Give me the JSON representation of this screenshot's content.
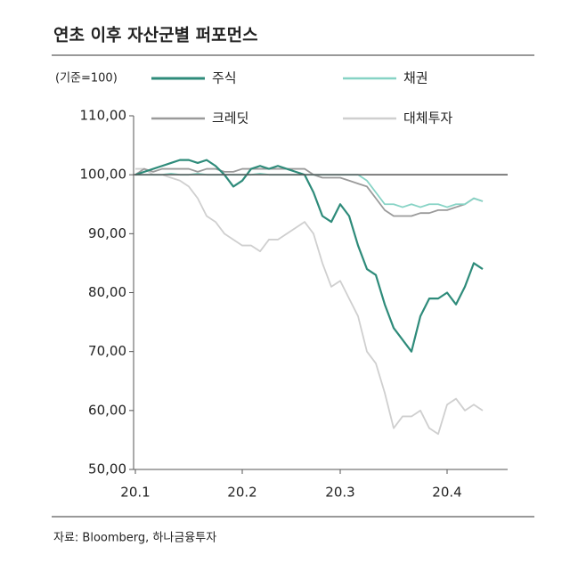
{
  "chart_data": {
    "type": "line",
    "title": "연초 이후 자산군별 퍼포먼스",
    "unit_note": "(기준=100)",
    "source": "자료: Bloomberg, 하나금융투자",
    "categories": [
      "20.1",
      null,
      null,
      null,
      null,
      null,
      null,
      null,
      null,
      null,
      null,
      null,
      "20.2",
      null,
      null,
      null,
      null,
      null,
      null,
      null,
      null,
      null,
      null,
      "20.3",
      null,
      null,
      null,
      null,
      null,
      null,
      null,
      null,
      null,
      null,
      null,
      "20.4",
      null,
      null,
      null,
      null
    ],
    "ylim": [
      50,
      110
    ],
    "yticks": [
      {
        "value": 50,
        "label": "50,00"
      },
      {
        "value": 60,
        "label": "60,00"
      },
      {
        "value": 70,
        "label": "70,00"
      },
      {
        "value": 80,
        "label": "80,00"
      },
      {
        "value": 90,
        "label": "90,00"
      },
      {
        "value": 100,
        "label": "100,00"
      },
      {
        "value": 110,
        "label": "110,00"
      }
    ],
    "reference_line": 100,
    "series": [
      {
        "name": "주식",
        "color": "#2e8b7a",
        "width": 2.2,
        "values": [
          100,
          100.5,
          101,
          101.5,
          102,
          102.5,
          102.5,
          102,
          102.5,
          101.5,
          100,
          98,
          99,
          101,
          101.5,
          101,
          101.5,
          101,
          100.5,
          100,
          97,
          93,
          92,
          95,
          93,
          88,
          84,
          83,
          78,
          74,
          72,
          70,
          76,
          79,
          79,
          80,
          78,
          81,
          85,
          84
        ]
      },
      {
        "name": "채권",
        "color": "#86d3c5",
        "width": 1.8,
        "values": [
          100,
          100,
          100,
          100,
          100.2,
          100,
          100,
          100.2,
          100,
          100,
          100,
          100,
          100,
          100,
          100.2,
          100,
          100,
          100,
          100,
          100,
          100,
          100,
          100,
          100,
          100,
          100,
          99,
          97,
          95,
          95,
          94.5,
          95,
          94.5,
          95,
          95,
          94.5,
          95,
          95,
          96,
          95.5
        ]
      },
      {
        "name": "크레딧",
        "color": "#9a9a9a",
        "width": 1.8,
        "values": [
          100,
          101,
          100.5,
          101,
          101,
          101,
          101,
          100.5,
          101,
          101,
          100.5,
          100.5,
          101,
          101,
          101,
          101,
          101,
          101,
          101,
          101,
          100,
          99.5,
          99.5,
          99.5,
          99,
          98.5,
          98,
          96,
          94,
          93,
          93,
          93,
          93.5,
          93.5,
          94,
          94,
          94.5,
          95,
          96,
          95.5
        ]
      },
      {
        "name": "대체투자",
        "color": "#cfcfcf",
        "width": 1.8,
        "values": [
          101,
          101,
          100,
          100,
          99.5,
          99,
          98,
          96,
          93,
          92,
          90,
          89,
          88,
          88,
          87,
          89,
          89,
          90,
          91,
          92,
          90,
          85,
          81,
          82,
          79,
          76,
          70,
          68,
          63,
          57,
          59,
          59,
          60,
          57,
          56,
          61,
          62,
          60,
          61,
          60
        ]
      }
    ]
  }
}
